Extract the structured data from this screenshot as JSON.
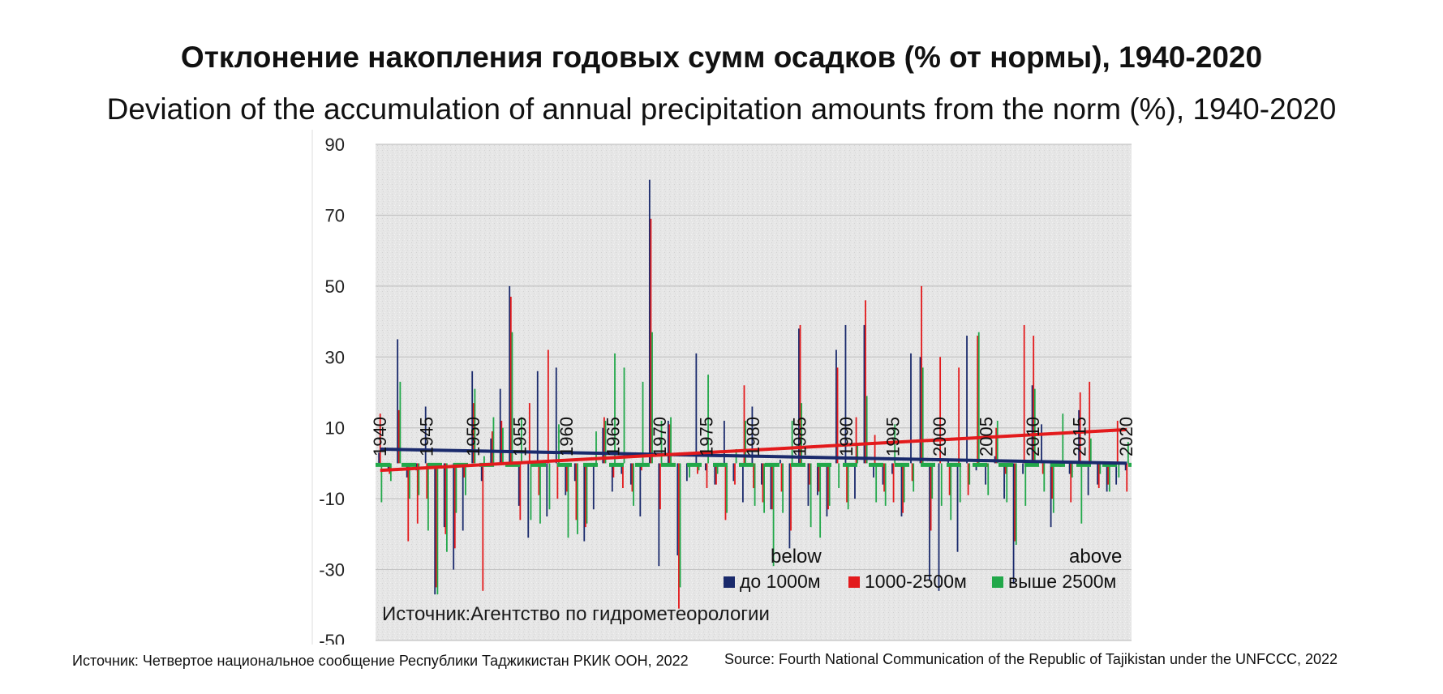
{
  "header": {
    "title_ru": "Отклонение накопления годовых сумм осадков (% от нормы), 1940-2020",
    "title_en": "Deviation of the accumulation of annual precipitation amounts from the norm (%), 1940-2020"
  },
  "footer": {
    "source_ru": "Источник: Четвертое национальное сообщение Республики Таджикистан РКИК ООН, 2022",
    "source_en": "Source: Fourth National Communication of the Republic of Tajikistan under the UNFCCC, 2022"
  },
  "chart_data": {
    "type": "bar",
    "x": [
      1940,
      1941,
      1942,
      1943,
      1944,
      1945,
      1946,
      1947,
      1948,
      1949,
      1950,
      1951,
      1952,
      1953,
      1954,
      1955,
      1956,
      1957,
      1958,
      1959,
      1960,
      1961,
      1962,
      1963,
      1964,
      1965,
      1966,
      1967,
      1968,
      1969,
      1970,
      1971,
      1972,
      1973,
      1974,
      1975,
      1976,
      1977,
      1978,
      1979,
      1980,
      1981,
      1982,
      1983,
      1984,
      1985,
      1986,
      1987,
      1988,
      1989,
      1990,
      1991,
      1992,
      1993,
      1994,
      1995,
      1996,
      1997,
      1998,
      1999,
      2000,
      2001,
      2002,
      2003,
      2004,
      2005,
      2006,
      2007,
      2008,
      2009,
      2010,
      2011,
      2012,
      2013,
      2014,
      2015,
      2016,
      2017,
      2018,
      2019,
      2020
    ],
    "series": [
      {
        "name": "до 1000м",
        "color": "#1a2a6c",
        "values": [
          3,
          -2,
          35,
          -4,
          -2,
          16,
          -37,
          -18,
          -30,
          -19,
          26,
          -5,
          7,
          21,
          50,
          -12,
          -21,
          26,
          -15,
          27,
          -9,
          -5,
          -22,
          -13,
          10,
          -8,
          -3,
          -6,
          -15,
          80,
          -29,
          12,
          -26,
          -5,
          31,
          -2,
          -6,
          12,
          -5,
          -11,
          16,
          -6,
          -13,
          1,
          -24,
          38,
          -12,
          -9,
          -15,
          32,
          39,
          -10,
          39,
          -4,
          -6,
          -3,
          -15,
          31,
          30,
          -33,
          -36,
          1,
          -25,
          36,
          -2,
          -6,
          2,
          -10,
          -34,
          -3,
          22,
          11,
          -18,
          -1,
          -3,
          15,
          -9,
          -6,
          -8,
          -6,
          -2
        ],
        "trend": [
          4,
          0
        ]
      },
      {
        "name": "1000-2500м",
        "color": "#e31a1c",
        "values": [
          14,
          -3,
          15,
          -22,
          -17,
          -10,
          -35,
          -20,
          -24,
          -4,
          17,
          -36,
          9,
          12,
          47,
          -16,
          17,
          -9,
          32,
          -10,
          -8,
          -16,
          -18,
          -1,
          13,
          -4,
          -7,
          -8,
          -2,
          69,
          -13,
          11,
          -41,
          -1,
          -3,
          -7,
          -6,
          -16,
          -6,
          22,
          -7,
          -11,
          -13,
          -8,
          -19,
          39,
          -6,
          -8,
          -13,
          27,
          -11,
          13,
          46,
          8,
          -8,
          -11,
          -14,
          -5,
          50,
          -19,
          30,
          -9,
          27,
          -9,
          36,
          -1,
          10,
          -3,
          -22,
          39,
          36,
          -3,
          -10,
          -1,
          -11,
          20,
          23,
          -7,
          -6,
          12,
          -8
        ],
        "trend": [
          -2,
          9.5
        ]
      },
      {
        "name": "выше 2500м",
        "color": "#22a84a",
        "values": [
          -11,
          -5,
          23,
          -10,
          -9,
          -19,
          -37,
          -25,
          -14,
          -9,
          21,
          2,
          13,
          10,
          37,
          13,
          -16,
          -17,
          -13,
          11,
          -21,
          -20,
          -17,
          9,
          12,
          31,
          27,
          -12,
          23,
          37,
          12,
          13,
          -35,
          -4,
          -2,
          25,
          -3,
          -14,
          4,
          12,
          -12,
          -14,
          -29,
          -14,
          12,
          17,
          -18,
          -21,
          -12,
          -7,
          -13,
          5,
          19,
          -11,
          -12,
          11,
          -11,
          -8,
          27,
          -10,
          -12,
          -16,
          -11,
          -6,
          37,
          -9,
          12,
          -11,
          -23,
          -12,
          21,
          -8,
          -14,
          14,
          -4,
          -17,
          7,
          -3,
          -8,
          -4,
          6
        ],
        "trend": null
      }
    ],
    "ylim": [
      -50,
      90
    ],
    "yticks": [
      90,
      70,
      50,
      30,
      10,
      -10,
      -30,
      -50
    ],
    "xtick_labels": [
      "1940",
      "1945",
      "1950",
      "1955",
      "1960",
      "1965",
      "1970",
      "1975",
      "1980",
      "1985",
      "1990",
      "1995",
      "2000",
      "2005",
      "2010",
      "2015",
      "2020"
    ],
    "legend_placement": "bottom-right",
    "legend_note_below": "below",
    "legend_note_above": "above",
    "inner_source": "Источник:Агентство по гидрометеорологии",
    "grid": true
  }
}
